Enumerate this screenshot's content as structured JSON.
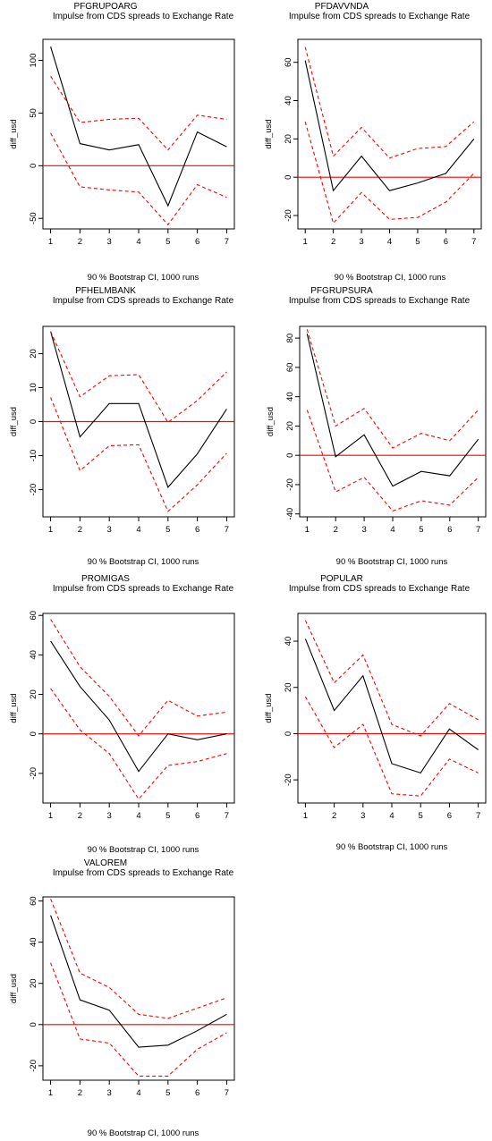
{
  "chart_data": [
    {
      "type": "line",
      "title": "PFGRUPOARG",
      "subtitle": "Impulse from CDS spreads to Exchange Rate",
      "ylabel": "diff_usd",
      "footer": "90 % Bootstrap CI,  1000 runs",
      "x": [
        1,
        2,
        3,
        4,
        5,
        6,
        7
      ],
      "ylim": [
        -60,
        120
      ],
      "yticks": [
        -50,
        0,
        50,
        100
      ],
      "zero_line": true,
      "series": [
        {
          "role": "irf",
          "color": "#000000",
          "values": [
            113,
            21,
            15,
            20,
            -38,
            32,
            18
          ]
        },
        {
          "role": "upper",
          "color": "#ff0000",
          "values": [
            85,
            41,
            44,
            45,
            15,
            48,
            44
          ]
        },
        {
          "role": "lower",
          "color": "#ff0000",
          "values": [
            31,
            -20,
            -23,
            -25,
            -56,
            -18,
            -30
          ]
        }
      ]
    },
    {
      "type": "line",
      "title": "PFDAVVNDA",
      "subtitle": "Impulse from CDS spreads to Exchange Rate",
      "ylabel": "diff_usd",
      "footer": "90 % Bootstrap CI,  1000 runs",
      "x": [
        1,
        2,
        3,
        4,
        5,
        6,
        7
      ],
      "ylim": [
        -27,
        72
      ],
      "yticks": [
        -20,
        0,
        20,
        40,
        60
      ],
      "zero_line": true,
      "series": [
        {
          "role": "irf",
          "color": "#000000",
          "values": [
            61,
            -7,
            11,
            -7,
            -3,
            2,
            20
          ]
        },
        {
          "role": "upper",
          "color": "#ff0000",
          "values": [
            68,
            11,
            26,
            10,
            15,
            16,
            29
          ]
        },
        {
          "role": "lower",
          "color": "#ff0000",
          "values": [
            29,
            -24,
            -8,
            -22,
            -21,
            -13,
            2
          ]
        }
      ]
    },
    {
      "type": "line",
      "title": "PFHELMBANK",
      "subtitle": "Impulse from CDS spreads to Exchange Rate",
      "ylabel": "diff_usd",
      "footer": "90 % Bootstrap CI,  1000 runs",
      "x": [
        1,
        2,
        3,
        4,
        5,
        6,
        7
      ],
      "ylim": [
        -28,
        28
      ],
      "yticks": [
        -20,
        -10,
        0,
        10,
        20
      ],
      "zero_line": true,
      "series": [
        {
          "role": "irf",
          "color": "#000000",
          "values": [
            26.5,
            -4.5,
            5.3,
            5.3,
            -19.3,
            -9.5,
            3.7
          ]
        },
        {
          "role": "upper",
          "color": "#ff0000",
          "values": [
            26.5,
            7.3,
            13.5,
            13.8,
            -0.2,
            6.2,
            14.6
          ]
        },
        {
          "role": "lower",
          "color": "#ff0000",
          "values": [
            7.1,
            -14.4,
            -7.1,
            -6.8,
            -26.4,
            -18.6,
            -9.3
          ]
        }
      ]
    },
    {
      "type": "line",
      "title": "PFGRUPSURA",
      "subtitle": "Impulse from CDS spreads to Exchange Rate",
      "ylabel": "diff_usd",
      "footer": "90 % Bootstrap CI,  1000 runs",
      "x": [
        1,
        2,
        3,
        4,
        5,
        6,
        7
      ],
      "ylim": [
        -42,
        88
      ],
      "yticks": [
        -40,
        -20,
        0,
        20,
        40,
        60,
        80
      ],
      "zero_line": true,
      "series": [
        {
          "role": "irf",
          "color": "#000000",
          "values": [
            83,
            -1,
            14,
            -21,
            -11,
            -14,
            11
          ]
        },
        {
          "role": "upper",
          "color": "#ff0000",
          "values": [
            86,
            20,
            32,
            5,
            15,
            10,
            31
          ]
        },
        {
          "role": "lower",
          "color": "#ff0000",
          "values": [
            31,
            -25,
            -15,
            -38,
            -31,
            -34,
            -15
          ]
        }
      ]
    },
    {
      "type": "line",
      "title": "PROMIGAS",
      "subtitle": "Impulse from CDS spreads to Exchange Rate",
      "ylabel": "diff_usd",
      "footer": "90 % Bootstrap CI,  1000 runs",
      "x": [
        1,
        2,
        3,
        4,
        5,
        6,
        7
      ],
      "ylim": [
        -35,
        61
      ],
      "yticks": [
        -20,
        0,
        20,
        40,
        60
      ],
      "zero_line": true,
      "series": [
        {
          "role": "irf",
          "color": "#000000",
          "values": [
            47,
            24,
            7,
            -19,
            0,
            -3,
            0
          ]
        },
        {
          "role": "upper",
          "color": "#ff0000",
          "values": [
            58,
            34,
            19,
            -1,
            17,
            9,
            11
          ]
        },
        {
          "role": "lower",
          "color": "#ff0000",
          "values": [
            23,
            2,
            -10,
            -33,
            -16,
            -14,
            -10
          ]
        }
      ]
    },
    {
      "type": "line",
      "title": "POPULAR",
      "subtitle": "Impulse from CDS spreads to Exchange Rate",
      "ylabel": "diff_usd",
      "footer": "90 % Bootstrap CI,  1000 runs",
      "x": [
        1,
        2,
        3,
        4,
        5,
        6,
        7
      ],
      "ylim": [
        -30,
        52
      ],
      "yticks": [
        -20,
        0,
        20,
        40
      ],
      "zero_line": true,
      "series": [
        {
          "role": "irf",
          "color": "#000000",
          "values": [
            41,
            10,
            25,
            -13,
            -17,
            2,
            -7
          ]
        },
        {
          "role": "upper",
          "color": "#ff0000",
          "values": [
            49,
            22,
            34,
            4,
            -1,
            13,
            6
          ]
        },
        {
          "role": "lower",
          "color": "#ff0000",
          "values": [
            16,
            -6,
            4,
            -26,
            -27,
            -11,
            -17
          ]
        }
      ]
    },
    {
      "type": "line",
      "title": "VALOREM",
      "subtitle": "Impulse from CDS spreads to Exchange Rate",
      "ylabel": "diff_usd",
      "footer": "90 % Bootstrap CI,  1000 runs",
      "x": [
        1,
        2,
        3,
        4,
        5,
        6,
        7
      ],
      "ylim": [
        -27,
        62
      ],
      "yticks": [
        -20,
        0,
        20,
        40,
        60
      ],
      "zero_line": true,
      "series": [
        {
          "role": "irf",
          "color": "#000000",
          "values": [
            53,
            12,
            7,
            -11,
            -10,
            -3,
            5
          ]
        },
        {
          "role": "upper",
          "color": "#ff0000",
          "values": [
            61,
            25,
            18,
            5,
            3,
            8,
            13
          ]
        },
        {
          "role": "lower",
          "color": "#ff0000",
          "values": [
            30,
            -7,
            -9,
            -25,
            -25,
            -12,
            -4
          ]
        }
      ]
    }
  ]
}
